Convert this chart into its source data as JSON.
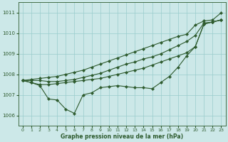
{
  "xlabel": "Graphe pression niveau de la mer (hPa)",
  "xlim": [
    -0.5,
    23.5
  ],
  "ylim": [
    1005.5,
    1011.5
  ],
  "yticks": [
    1006,
    1007,
    1008,
    1009,
    1010,
    1011
  ],
  "xticks": [
    0,
    1,
    2,
    3,
    4,
    5,
    6,
    7,
    8,
    9,
    10,
    11,
    12,
    13,
    14,
    15,
    16,
    17,
    18,
    19,
    20,
    21,
    22,
    23
  ],
  "bg_color": "#cce8e8",
  "line_color": "#2d5a2d",
  "grid_color": "#99cccc",
  "s1": [
    1007.7,
    1007.75,
    1007.8,
    1007.85,
    1007.9,
    1008.0,
    1008.1,
    1008.2,
    1008.35,
    1008.5,
    1008.65,
    1008.8,
    1008.95,
    1009.1,
    1009.25,
    1009.4,
    1009.55,
    1009.7,
    1009.85,
    1009.95,
    1010.4,
    1010.6,
    1010.65,
    1011.0
  ],
  "s2": [
    1007.7,
    1007.7,
    1007.7,
    1007.65,
    1007.65,
    1007.7,
    1007.75,
    1007.85,
    1007.95,
    1008.05,
    1008.2,
    1008.35,
    1008.5,
    1008.6,
    1008.75,
    1008.85,
    1009.0,
    1009.2,
    1009.4,
    1009.6,
    1009.9,
    1010.5,
    1010.55,
    1010.65
  ],
  "s3": [
    1007.7,
    1007.6,
    1007.5,
    1007.5,
    1007.55,
    1007.6,
    1007.65,
    1007.7,
    1007.75,
    1007.8,
    1007.9,
    1008.0,
    1008.1,
    1008.2,
    1008.3,
    1008.45,
    1008.6,
    1008.75,
    1008.9,
    1009.05,
    1009.35,
    1010.45,
    1010.55,
    1010.65
  ],
  "s4": [
    1007.7,
    1007.6,
    1007.45,
    1006.8,
    1006.75,
    1006.3,
    1006.1,
    1007.0,
    1007.1,
    1007.35,
    1007.4,
    1007.45,
    1007.4,
    1007.35,
    1007.35,
    1007.3,
    1007.6,
    1007.9,
    1008.35,
    1008.9,
    1009.35,
    1010.45,
    1010.55,
    1010.65
  ]
}
